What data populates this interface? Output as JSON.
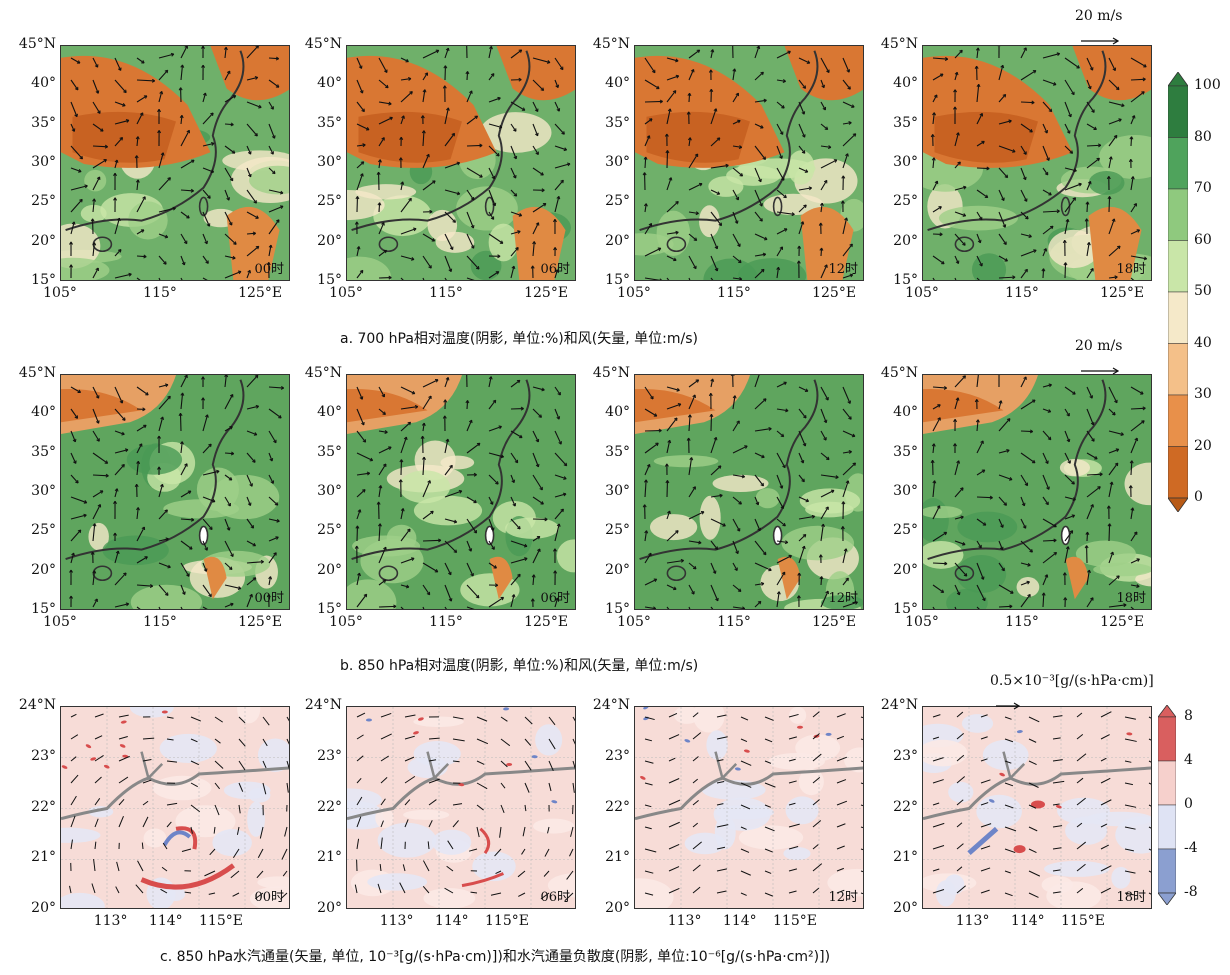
{
  "row_a": {
    "caption": "a.  700 hPa相对温度(阴影, 单位:%)和风(矢量, 单位:m/s)",
    "ref_vector": "20 m/s",
    "y_ticks": [
      "45°N",
      "40°",
      "35°",
      "30°",
      "25°",
      "20°",
      "15°"
    ],
    "x_ticks": [
      "105°",
      "115°",
      "125°E"
    ],
    "times": [
      "00时",
      "06时",
      "12时",
      "18时"
    ]
  },
  "row_b": {
    "caption": "b.  850 hPa相对温度(阴影, 单位:%)和风(矢量, 单位:m/s)",
    "ref_vector": "20 m/s",
    "y_ticks": [
      "45°N",
      "40°",
      "35°",
      "30°",
      "25°",
      "20°",
      "15°"
    ],
    "x_ticks": [
      "105°",
      "115°",
      "125°E"
    ],
    "times": [
      "00时",
      "06时",
      "12时",
      "18时"
    ]
  },
  "row_c": {
    "caption": "c.  850 hPa水汽通量(矢量, 单位, 10⁻³[g/(s·hPa·cm)])和水汽通量负散度(阴影, 单位:10⁻⁶[g/(s·hPa·cm²)])",
    "ref_vector": "0.5×10⁻³[g/(s·hPa·cm)]",
    "y_ticks": [
      "24°N",
      "23°",
      "22°",
      "21°",
      "20°"
    ],
    "x_ticks": [
      "113°",
      "114°",
      "115°E"
    ],
    "times": [
      "00时",
      "06时",
      "12时",
      "18时"
    ]
  },
  "colorbar_rh": {
    "labels": [
      "100",
      "80",
      "70",
      "60",
      "50",
      "40",
      "30",
      "20",
      "0"
    ],
    "colors": [
      "#2e7d3f",
      "#4fa35c",
      "#8fc97e",
      "#c9e6a8",
      "#f5e9c9",
      "#f4c089",
      "#e8904a",
      "#cf6a24",
      "#b85a16"
    ]
  },
  "colorbar_div": {
    "labels": [
      "8",
      "4",
      "0",
      "-4",
      "-8"
    ],
    "colors": [
      "#d95f5f",
      "#f6d0cc",
      "#dfe3f4",
      "#8b9fd0"
    ]
  }
}
